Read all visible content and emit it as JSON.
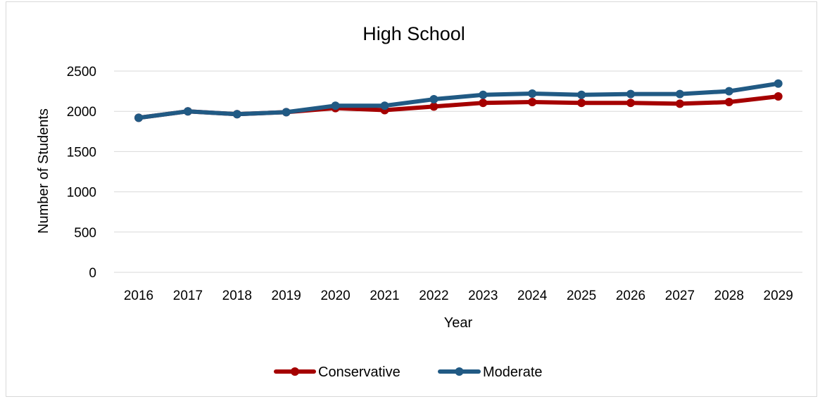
{
  "chart_data": {
    "type": "line",
    "title": "High School",
    "xlabel": "Year",
    "ylabel": "Number of Students",
    "categories": [
      "2016",
      "2017",
      "2018",
      "2019",
      "2020",
      "2021",
      "2022",
      "2023",
      "2024",
      "2025",
      "2026",
      "2027",
      "2028",
      "2029"
    ],
    "ylim": [
      0,
      2500
    ],
    "yticks": [
      0,
      500,
      1000,
      1500,
      2000,
      2500
    ],
    "grid": true,
    "legend_position": "bottom",
    "series": [
      {
        "name": "Conservative",
        "color": "#A50000",
        "values": [
          1920,
          2000,
          1965,
          1990,
          2040,
          2015,
          2060,
          2105,
          2115,
          2105,
          2105,
          2095,
          2115,
          2185
        ]
      },
      {
        "name": "Moderate",
        "color": "#215A84",
        "values": [
          1920,
          2000,
          1965,
          1990,
          2070,
          2070,
          2150,
          2205,
          2220,
          2205,
          2215,
          2215,
          2250,
          2345
        ]
      }
    ]
  }
}
